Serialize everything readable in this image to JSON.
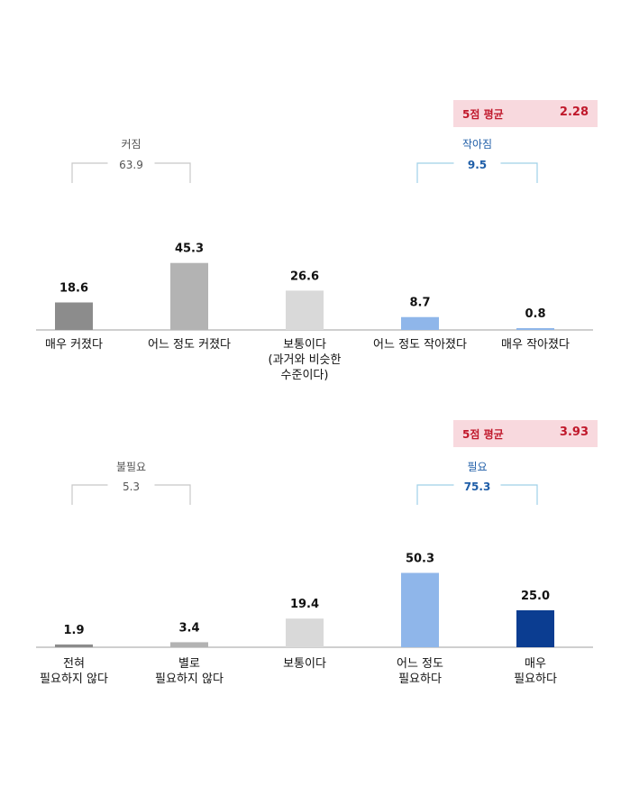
{
  "colors": {
    "darkgray": "#8c8c8c",
    "midgray": "#b3b3b3",
    "lightgray": "#d9d9d9",
    "lightblue": "#8fb6ea",
    "navy": "#0b3d91",
    "avg_bg": "#f8d9de",
    "avg_text": "#c0182b",
    "bracket_gray": "#c8c8c8",
    "bracket_blue": "#9fd0e8",
    "blue_text": "#1f5ea8"
  },
  "chart_data": [
    {
      "type": "bar",
      "categories": [
        "매우 커졌다",
        "어느 정도 커졌다",
        "보통이다\n(과거와 비슷한\n수준이다)",
        "어느 정도 작아졌다",
        "매우 작아졌다"
      ],
      "values": [
        18.6,
        45.3,
        26.6,
        8.7,
        0.8
      ],
      "value_labels": [
        "18.6",
        "45.3",
        "26.6",
        "8.7",
        "0.8"
      ],
      "bar_colors": [
        "darkgray",
        "midgray",
        "lightgray",
        "lightblue",
        "lightblue"
      ],
      "average": {
        "label": "5점 평균",
        "value": "2.28"
      },
      "groups": [
        {
          "label": "커짐",
          "value": "63.9",
          "color": "bracket_gray",
          "text_color": "#555555"
        },
        {
          "label": "작아짐",
          "value": "9.5",
          "color": "bracket_blue",
          "text_color": "blue_text"
        }
      ]
    },
    {
      "type": "bar",
      "categories": [
        "전혀\n필요하지 않다",
        "별로\n필요하지 않다",
        "보통이다",
        "어느 정도\n필요하다",
        "매우\n필요하다"
      ],
      "values": [
        1.9,
        3.4,
        19.4,
        50.3,
        25.0
      ],
      "value_labels": [
        "1.9",
        "3.4",
        "19.4",
        "50.3",
        "25.0"
      ],
      "bar_colors": [
        "darkgray",
        "midgray",
        "lightgray",
        "lightblue",
        "navy"
      ],
      "average": {
        "label": "5점 평균",
        "value": "3.93"
      },
      "groups": [
        {
          "label": "불필요",
          "value": "5.3",
          "color": "bracket_gray",
          "text_color": "#555555"
        },
        {
          "label": "필요",
          "value": "75.3",
          "color": "bracket_blue",
          "text_color": "blue_text"
        }
      ]
    }
  ]
}
